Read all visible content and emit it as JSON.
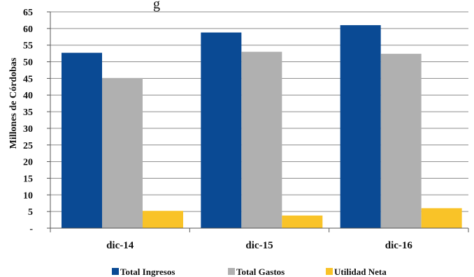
{
  "chart_data": {
    "type": "bar",
    "title": "",
    "title_visible_fragment": "g",
    "xlabel": "",
    "ylabel": "Millones de Córdobas",
    "categories": [
      "dic-14",
      "dic-15",
      "dic-16"
    ],
    "ylim": [
      0,
      65
    ],
    "yticks": [
      "-",
      "5",
      "10",
      "15",
      "20",
      "25",
      "30",
      "35",
      "40",
      "45",
      "50",
      "55",
      "60",
      "65"
    ],
    "grid": true,
    "legend_position": "bottom",
    "series": [
      {
        "name": "Total Ingresos",
        "color": "#0a4a94",
        "values": [
          52.7,
          58.8,
          61.0
        ]
      },
      {
        "name": "Total Gastos",
        "color": "#b0b0b0",
        "values": [
          45.1,
          53.0,
          52.4
        ]
      },
      {
        "name": "Utilidad Neta",
        "color": "#f9c328",
        "values": [
          5.2,
          3.8,
          6.0
        ]
      }
    ]
  }
}
